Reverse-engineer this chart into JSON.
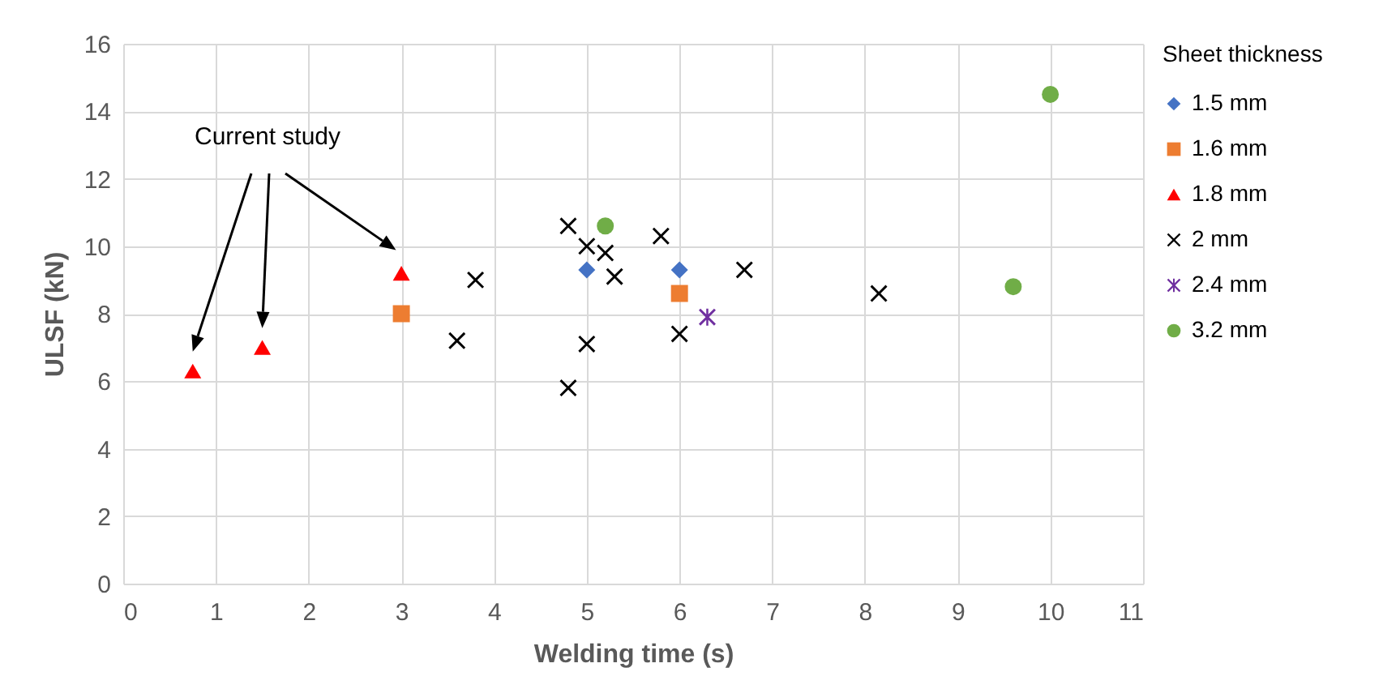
{
  "chart_data": {
    "type": "scatter",
    "xlabel": "Welding time (s)",
    "ylabel": "ULSF (kN)",
    "legend_title": "Sheet thickness",
    "legend": "right",
    "grid": true,
    "xlim": [
      0,
      11
    ],
    "xticks": [
      0,
      1,
      2,
      3,
      4,
      5,
      6,
      7,
      8,
      9,
      10,
      11
    ],
    "ylim": [
      0,
      16
    ],
    "yticks": [
      0,
      2,
      4,
      6,
      8,
      10,
      12,
      14,
      16
    ],
    "annotations": [
      "Current study"
    ],
    "series": [
      {
        "name": "1.5 mm",
        "color": "#4472c4",
        "marker": "diamond",
        "x": [
          5.0,
          6.0
        ],
        "values": [
          9.3,
          9.3
        ]
      },
      {
        "name": "1.6 mm",
        "color": "#ed7d31",
        "marker": "square",
        "x": [
          3.0,
          6.0
        ],
        "values": [
          8.0,
          8.6
        ]
      },
      {
        "name": "1.8 mm",
        "color": "#ff0000",
        "marker": "triangle",
        "x": [
          0.75,
          1.5,
          3.0
        ],
        "values": [
          6.3,
          7.0,
          9.2
        ]
      },
      {
        "name": "2 mm",
        "color": "#000000",
        "marker": "cross",
        "x": [
          3.6,
          3.8,
          4.8,
          5.0,
          5.2,
          5.3,
          5.0,
          4.8,
          5.8,
          6.0,
          6.7,
          8.15
        ],
        "values": [
          7.2,
          9.0,
          10.6,
          10.0,
          9.8,
          9.1,
          7.1,
          5.8,
          10.3,
          7.4,
          9.3,
          8.6
        ]
      },
      {
        "name": "2.4 mm",
        "color": "#7030a0",
        "marker": "star",
        "x": [
          6.3
        ],
        "values": [
          7.9
        ]
      },
      {
        "name": "3.2 mm",
        "color": "#70ad47",
        "marker": "circle",
        "x": [
          5.2,
          9.6,
          10.0
        ],
        "values": [
          10.6,
          8.8,
          14.5
        ]
      }
    ]
  }
}
